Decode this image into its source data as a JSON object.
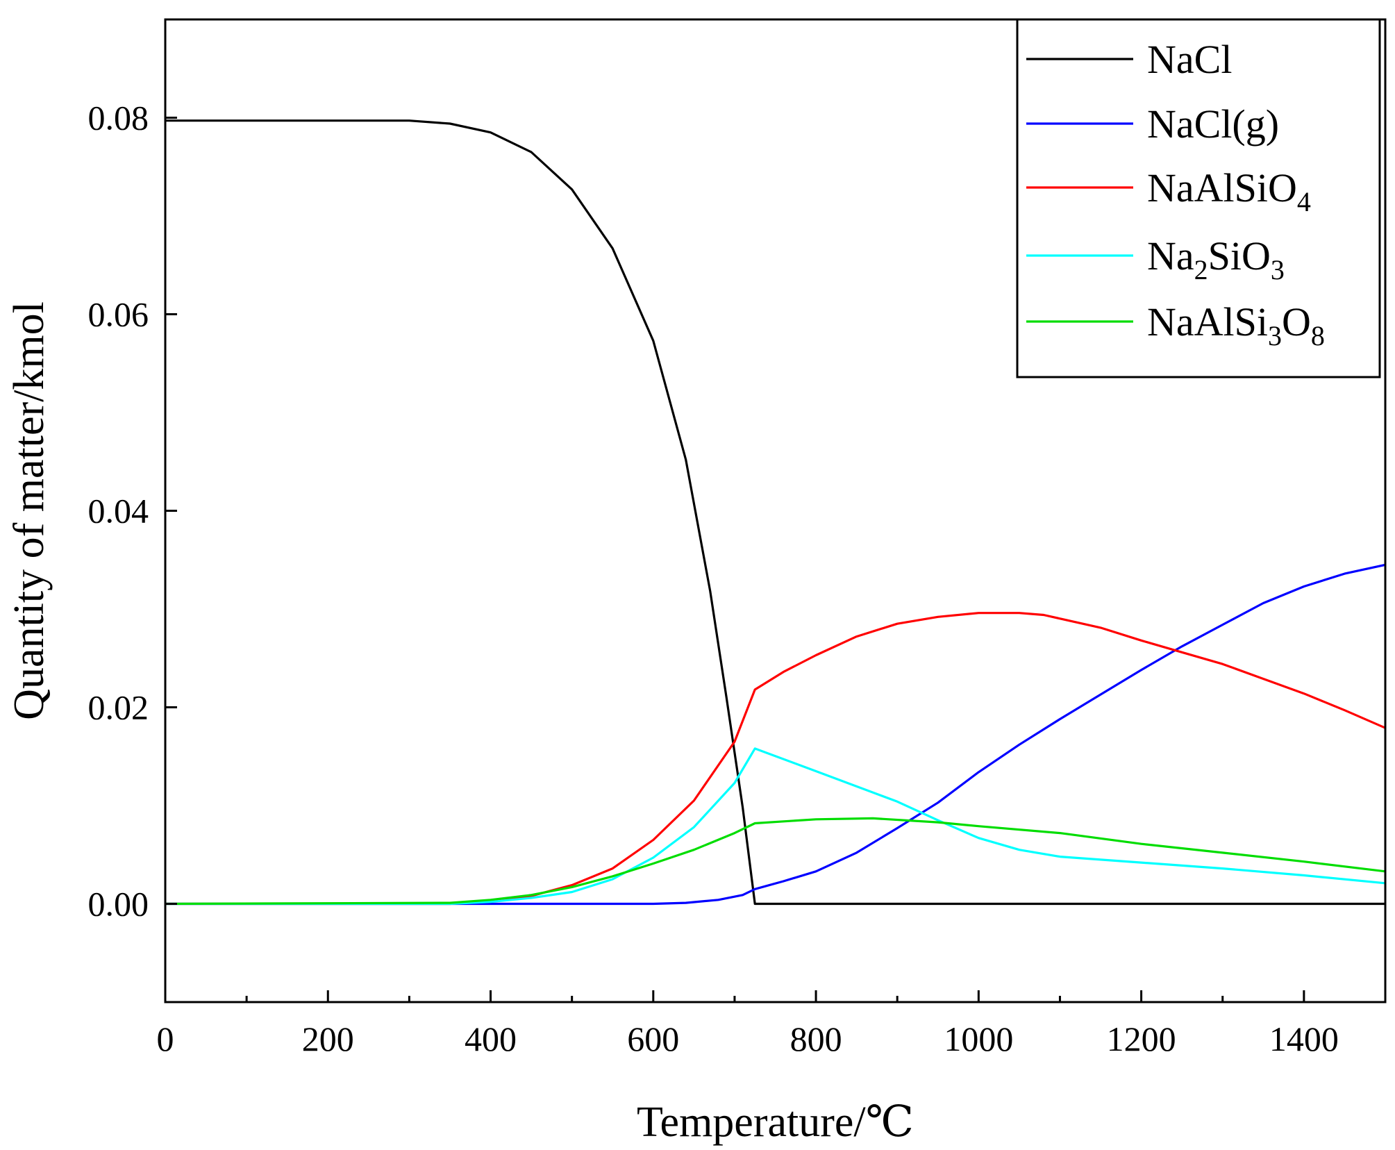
{
  "chart_data": {
    "type": "line",
    "title": "",
    "xlabel": "Temperature/℃",
    "ylabel": "Quantity of matter/kmol",
    "xlim": [
      0,
      1500
    ],
    "ylim": [
      -0.01,
      0.09
    ],
    "x_ticks": [
      0,
      200,
      400,
      600,
      800,
      1000,
      1200,
      1400
    ],
    "x_tick_labels": [
      "0",
      "200",
      "400",
      "600",
      "800",
      "1000",
      "1200",
      "1400"
    ],
    "y_ticks": [
      0.0,
      0.02,
      0.04,
      0.06,
      0.08
    ],
    "y_tick_labels": [
      "0.00",
      "0.02",
      "0.04",
      "0.06",
      "0.08"
    ],
    "grid": false,
    "legend_position": "top-right",
    "series": [
      {
        "name": "NaCl",
        "legend": {
          "base": "NaCl",
          "sub": "",
          "tail": "",
          "sub2": ""
        },
        "color": "#000000",
        "points": [
          [
            0,
            0.0797
          ],
          [
            100,
            0.0797
          ],
          [
            200,
            0.0797
          ],
          [
            300,
            0.0797
          ],
          [
            350,
            0.0794
          ],
          [
            400,
            0.0785
          ],
          [
            450,
            0.0765
          ],
          [
            500,
            0.0727
          ],
          [
            550,
            0.0667
          ],
          [
            600,
            0.0573
          ],
          [
            640,
            0.0452
          ],
          [
            670,
            0.0318
          ],
          [
            690,
            0.021
          ],
          [
            710,
            0.0098
          ],
          [
            725,
            0.0
          ],
          [
            800,
            0.0
          ],
          [
            1000,
            0.0
          ],
          [
            1200,
            0.0
          ],
          [
            1500,
            0.0
          ]
        ]
      },
      {
        "name": "NaCl(g)",
        "legend": {
          "base": "NaCl(g)",
          "sub": "",
          "tail": "",
          "sub2": ""
        },
        "color": "#0000ff",
        "points": [
          [
            0,
            0.0
          ],
          [
            400,
            0.0
          ],
          [
            500,
            0.0
          ],
          [
            600,
            0.0
          ],
          [
            640,
            0.0001
          ],
          [
            680,
            0.0004
          ],
          [
            710,
            0.0009
          ],
          [
            725,
            0.0015
          ],
          [
            760,
            0.0023
          ],
          [
            800,
            0.0033
          ],
          [
            850,
            0.0052
          ],
          [
            900,
            0.0077
          ],
          [
            950,
            0.0103
          ],
          [
            1000,
            0.0134
          ],
          [
            1050,
            0.0162
          ],
          [
            1100,
            0.0188
          ],
          [
            1150,
            0.0213
          ],
          [
            1200,
            0.0238
          ],
          [
            1250,
            0.0262
          ],
          [
            1300,
            0.0284
          ],
          [
            1350,
            0.0306
          ],
          [
            1400,
            0.0323
          ],
          [
            1450,
            0.0336
          ],
          [
            1500,
            0.0345
          ]
        ]
      },
      {
        "name": "NaAlSiO4",
        "legend": {
          "base": "NaAlSiO",
          "sub": "4",
          "tail": "",
          "sub2": ""
        },
        "color": "#ff0000",
        "points": [
          [
            0,
            0.0
          ],
          [
            350,
            0.0
          ],
          [
            400,
            0.0003
          ],
          [
            450,
            0.0008
          ],
          [
            500,
            0.0019
          ],
          [
            550,
            0.0036
          ],
          [
            600,
            0.0065
          ],
          [
            650,
            0.0105
          ],
          [
            700,
            0.0165
          ],
          [
            725,
            0.0218
          ],
          [
            760,
            0.0236
          ],
          [
            800,
            0.0253
          ],
          [
            850,
            0.0272
          ],
          [
            900,
            0.0285
          ],
          [
            950,
            0.0292
          ],
          [
            1000,
            0.0296
          ],
          [
            1050,
            0.0296
          ],
          [
            1080,
            0.0294
          ],
          [
            1150,
            0.0281
          ],
          [
            1200,
            0.0268
          ],
          [
            1250,
            0.0256
          ],
          [
            1300,
            0.0244
          ],
          [
            1350,
            0.0229
          ],
          [
            1400,
            0.0214
          ],
          [
            1450,
            0.0197
          ],
          [
            1500,
            0.0179
          ]
        ]
      },
      {
        "name": "Na2SiO3",
        "legend": {
          "base": "Na",
          "sub": "2",
          "tail": "SiO",
          "sub2": "3"
        },
        "color": "#00ffff",
        "points": [
          [
            0,
            0.0
          ],
          [
            350,
            0.0
          ],
          [
            400,
            0.0002
          ],
          [
            450,
            0.0006
          ],
          [
            500,
            0.0012
          ],
          [
            550,
            0.0025
          ],
          [
            600,
            0.0047
          ],
          [
            650,
            0.0078
          ],
          [
            700,
            0.0123
          ],
          [
            725,
            0.0158
          ],
          [
            800,
            0.0135
          ],
          [
            900,
            0.0104
          ],
          [
            950,
            0.0085
          ],
          [
            1000,
            0.0067
          ],
          [
            1050,
            0.0055
          ],
          [
            1100,
            0.0048
          ],
          [
            1200,
            0.0042
          ],
          [
            1300,
            0.0036
          ],
          [
            1400,
            0.0029
          ],
          [
            1500,
            0.0021
          ]
        ]
      },
      {
        "name": "NaAlSi3O8",
        "legend": {
          "base": "NaAlSi",
          "sub": "3",
          "tail": "O",
          "sub2": "8"
        },
        "color": "#00dd00",
        "points": [
          [
            0,
            0.0
          ],
          [
            350,
            0.0001
          ],
          [
            400,
            0.0004
          ],
          [
            450,
            0.0009
          ],
          [
            500,
            0.0017
          ],
          [
            550,
            0.0028
          ],
          [
            600,
            0.0041
          ],
          [
            650,
            0.0055
          ],
          [
            700,
            0.0072
          ],
          [
            725,
            0.0082
          ],
          [
            800,
            0.0086
          ],
          [
            870,
            0.0087
          ],
          [
            950,
            0.0083
          ],
          [
            1000,
            0.0079
          ],
          [
            1100,
            0.0072
          ],
          [
            1200,
            0.0061
          ],
          [
            1300,
            0.0052
          ],
          [
            1400,
            0.0043
          ],
          [
            1500,
            0.0033
          ]
        ]
      }
    ]
  }
}
